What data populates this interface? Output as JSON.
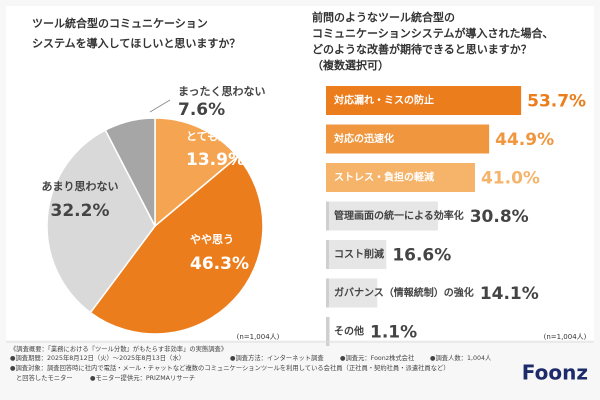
{
  "chart_data": [
    {
      "type": "pie",
      "title": [
        "ツール統合型のコミュニケーション",
        "システムを導入してほしいと思いますか？"
      ],
      "categories": [
        "とても思う",
        "やや思う",
        "あまり思わない",
        "まったく思わない"
      ],
      "values": [
        13.9,
        46.3,
        32.2,
        7.6
      ],
      "value_labels": [
        "13.9%",
        "46.3%",
        "32.2%",
        "7.6%"
      ],
      "colors": [
        "#f5a451",
        "#ec7d1c",
        "#d9d9d9",
        "#a6a6a6"
      ],
      "note": "(n=1,004人)"
    },
    {
      "type": "hbar",
      "title": [
        "前問のようなツール統合型の",
        "コミュニケーションシステムが導入された場合、",
        "どのような改善が期待できると思いますか？"
      ],
      "subtitle": "（複数選択可）",
      "categories": [
        "対応漏れ・ミスの防止",
        "対応の迅速化",
        "ストレス・負担の軽減",
        "管理画面の統一による効率化",
        "コスト削減",
        "ガバナンス（情報統制）の強化",
        "その他"
      ],
      "values": [
        53.7,
        44.9,
        41.0,
        30.8,
        16.6,
        14.1,
        1.1
      ],
      "value_labels": [
        "53.7%",
        "44.9%",
        "41.0%",
        "30.8%",
        "16.6%",
        "14.1%",
        "1.1%"
      ],
      "colors": [
        "#ec7d1c",
        "#f0963f",
        "#f5b46a",
        "#e6e6e6",
        "#e6e6e6",
        "#e6e6e6",
        "#e6e6e6"
      ],
      "xlim": [
        0,
        60
      ],
      "note": "(n=1,004人)"
    }
  ],
  "footer": {
    "heading": "《調査概要：「業務における『ツール分散』がもたらす非効率」の実態調査》",
    "items": [
      "●調査期間：2025年8月12日（火）〜2025年8月13日（水）",
      "●調査方法：インターネット調査",
      "●調査元：Foonz株式会社",
      "●調査人数：1,004人"
    ],
    "target": [
      "●調査対象：調査回答時に社内で電話・メール・チャットなど複数のコミュニケーションツールを利用している会社員（正社員・契約社員・派遣社員など）",
      "と回答したモニター",
      "●モニター提供元：PRIZMAリサーチ"
    ],
    "logo": "Foonz"
  }
}
